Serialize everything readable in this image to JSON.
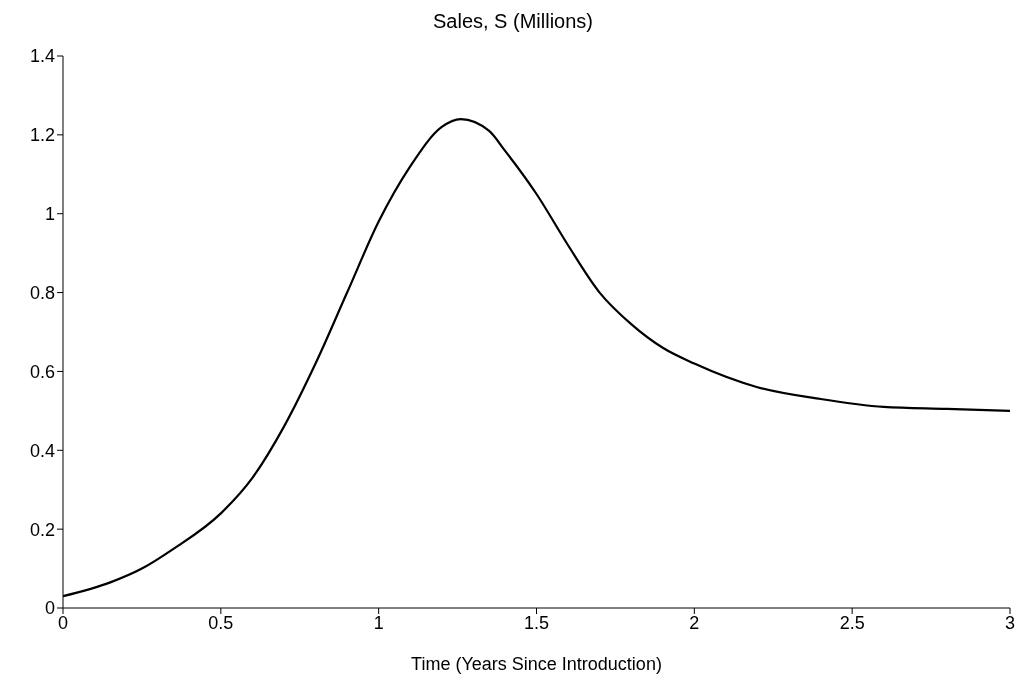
{
  "chart_data": {
    "type": "line",
    "title": "Sales, S (Millions)",
    "xlabel": "Time (Years Since Introduction)",
    "x": [
      0,
      0.15,
      0.25,
      0.35,
      0.5,
      0.6,
      0.7,
      0.8,
      0.9,
      1.0,
      1.1,
      1.2,
      1.26,
      1.35,
      1.4,
      1.5,
      1.6,
      1.7,
      1.8,
      1.9,
      2.0,
      2.2,
      2.4,
      2.6,
      2.8,
      3.0
    ],
    "series": [
      {
        "color": "#000000",
        "values": [
          0.03,
          0.065,
          0.1,
          0.15,
          0.24,
          0.33,
          0.46,
          0.62,
          0.8,
          0.98,
          1.12,
          1.22,
          1.24,
          1.21,
          1.16,
          1.05,
          0.92,
          0.8,
          0.72,
          0.66,
          0.62,
          0.56,
          0.53,
          0.51,
          0.505,
          0.5
        ]
      }
    ],
    "xlim": [
      0,
      3
    ],
    "xticks": [
      0,
      0.5,
      1,
      1.5,
      2,
      2.5,
      3
    ],
    "ylim": [
      0,
      1.4
    ],
    "yticks": [
      0,
      0.2,
      0.4,
      0.6,
      0.8,
      1,
      1.2,
      1.4
    ],
    "grid": false,
    "legend": false,
    "marker": "none",
    "line_style": "solid"
  }
}
